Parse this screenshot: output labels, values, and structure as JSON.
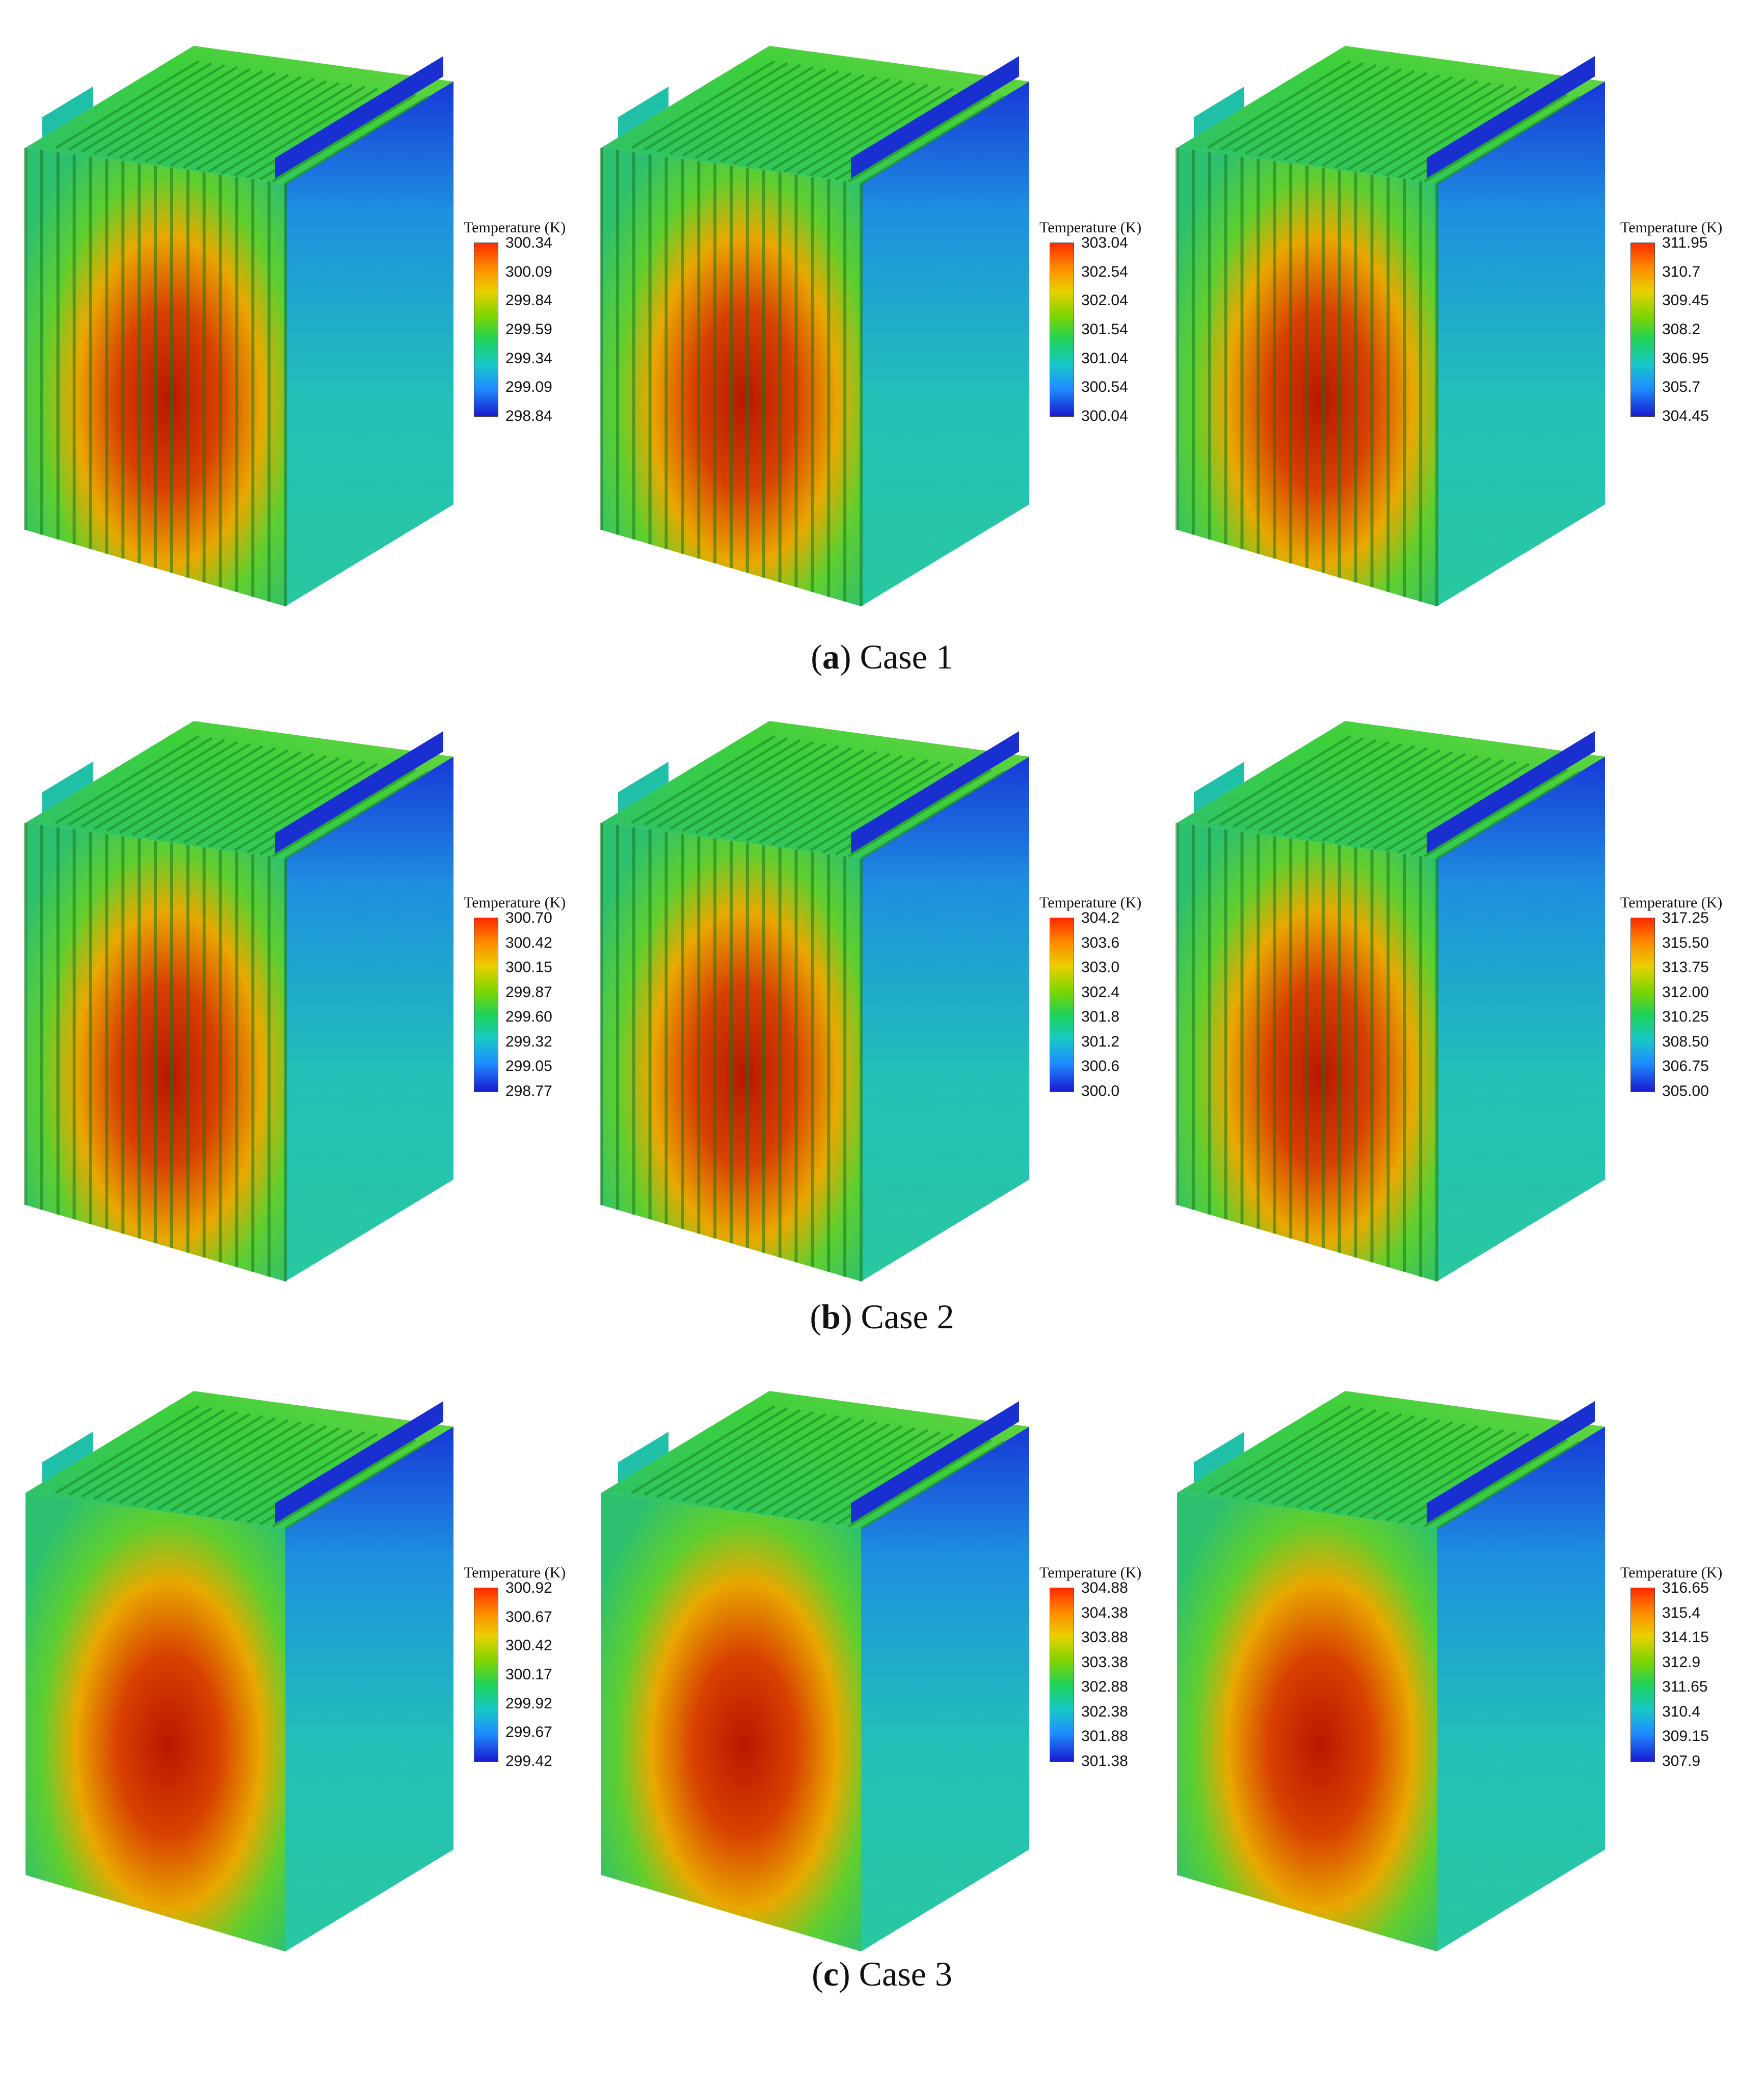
{
  "legend_title": "Temperature (K)",
  "rows": [
    {
      "caption_letter": "a",
      "caption_text": "Case 1",
      "panels": [
        {
          "ticks": [
            "300.34",
            "300.09",
            "299.84",
            "299.59",
            "299.34",
            "299.09",
            "298.84"
          ]
        },
        {
          "ticks": [
            "303.04",
            "302.54",
            "302.04",
            "301.54",
            "301.04",
            "300.54",
            "300.04"
          ]
        },
        {
          "ticks": [
            "311.95",
            "310.7",
            "309.45",
            "308.2",
            "306.95",
            "305.7",
            "304.45"
          ]
        }
      ]
    },
    {
      "caption_letter": "b",
      "caption_text": "Case 2",
      "panels": [
        {
          "ticks": [
            "300.70",
            "300.42",
            "300.15",
            "299.87",
            "299.60",
            "299.32",
            "299.05",
            "298.77"
          ]
        },
        {
          "ticks": [
            "304.2",
            "303.6",
            "303.0",
            "302.4",
            "301.8",
            "301.2",
            "300.6",
            "300.0"
          ]
        },
        {
          "ticks": [
            "317.25",
            "315.50",
            "313.75",
            "312.00",
            "310.25",
            "308.50",
            "306.75",
            "305.00"
          ]
        }
      ]
    },
    {
      "caption_letter": "c",
      "caption_text": "Case 3",
      "panels": [
        {
          "ticks": [
            "300.92",
            "300.67",
            "300.42",
            "300.17",
            "299.92",
            "299.67",
            "299.42"
          ]
        },
        {
          "ticks": [
            "304.88",
            "304.38",
            "303.88",
            "303.38",
            "302.88",
            "302.38",
            "301.88",
            "301.38"
          ]
        },
        {
          "ticks": [
            "316.65",
            "315.4",
            "314.15",
            "312.9",
            "311.65",
            "310.4",
            "309.15",
            "307.9"
          ]
        }
      ]
    }
  ],
  "colors": {
    "hot": "#c01a00",
    "warm": "#e8a000",
    "mid": "#3ccf3c",
    "cool": "#20c2a8",
    "cold": "#1a3ad8"
  }
}
